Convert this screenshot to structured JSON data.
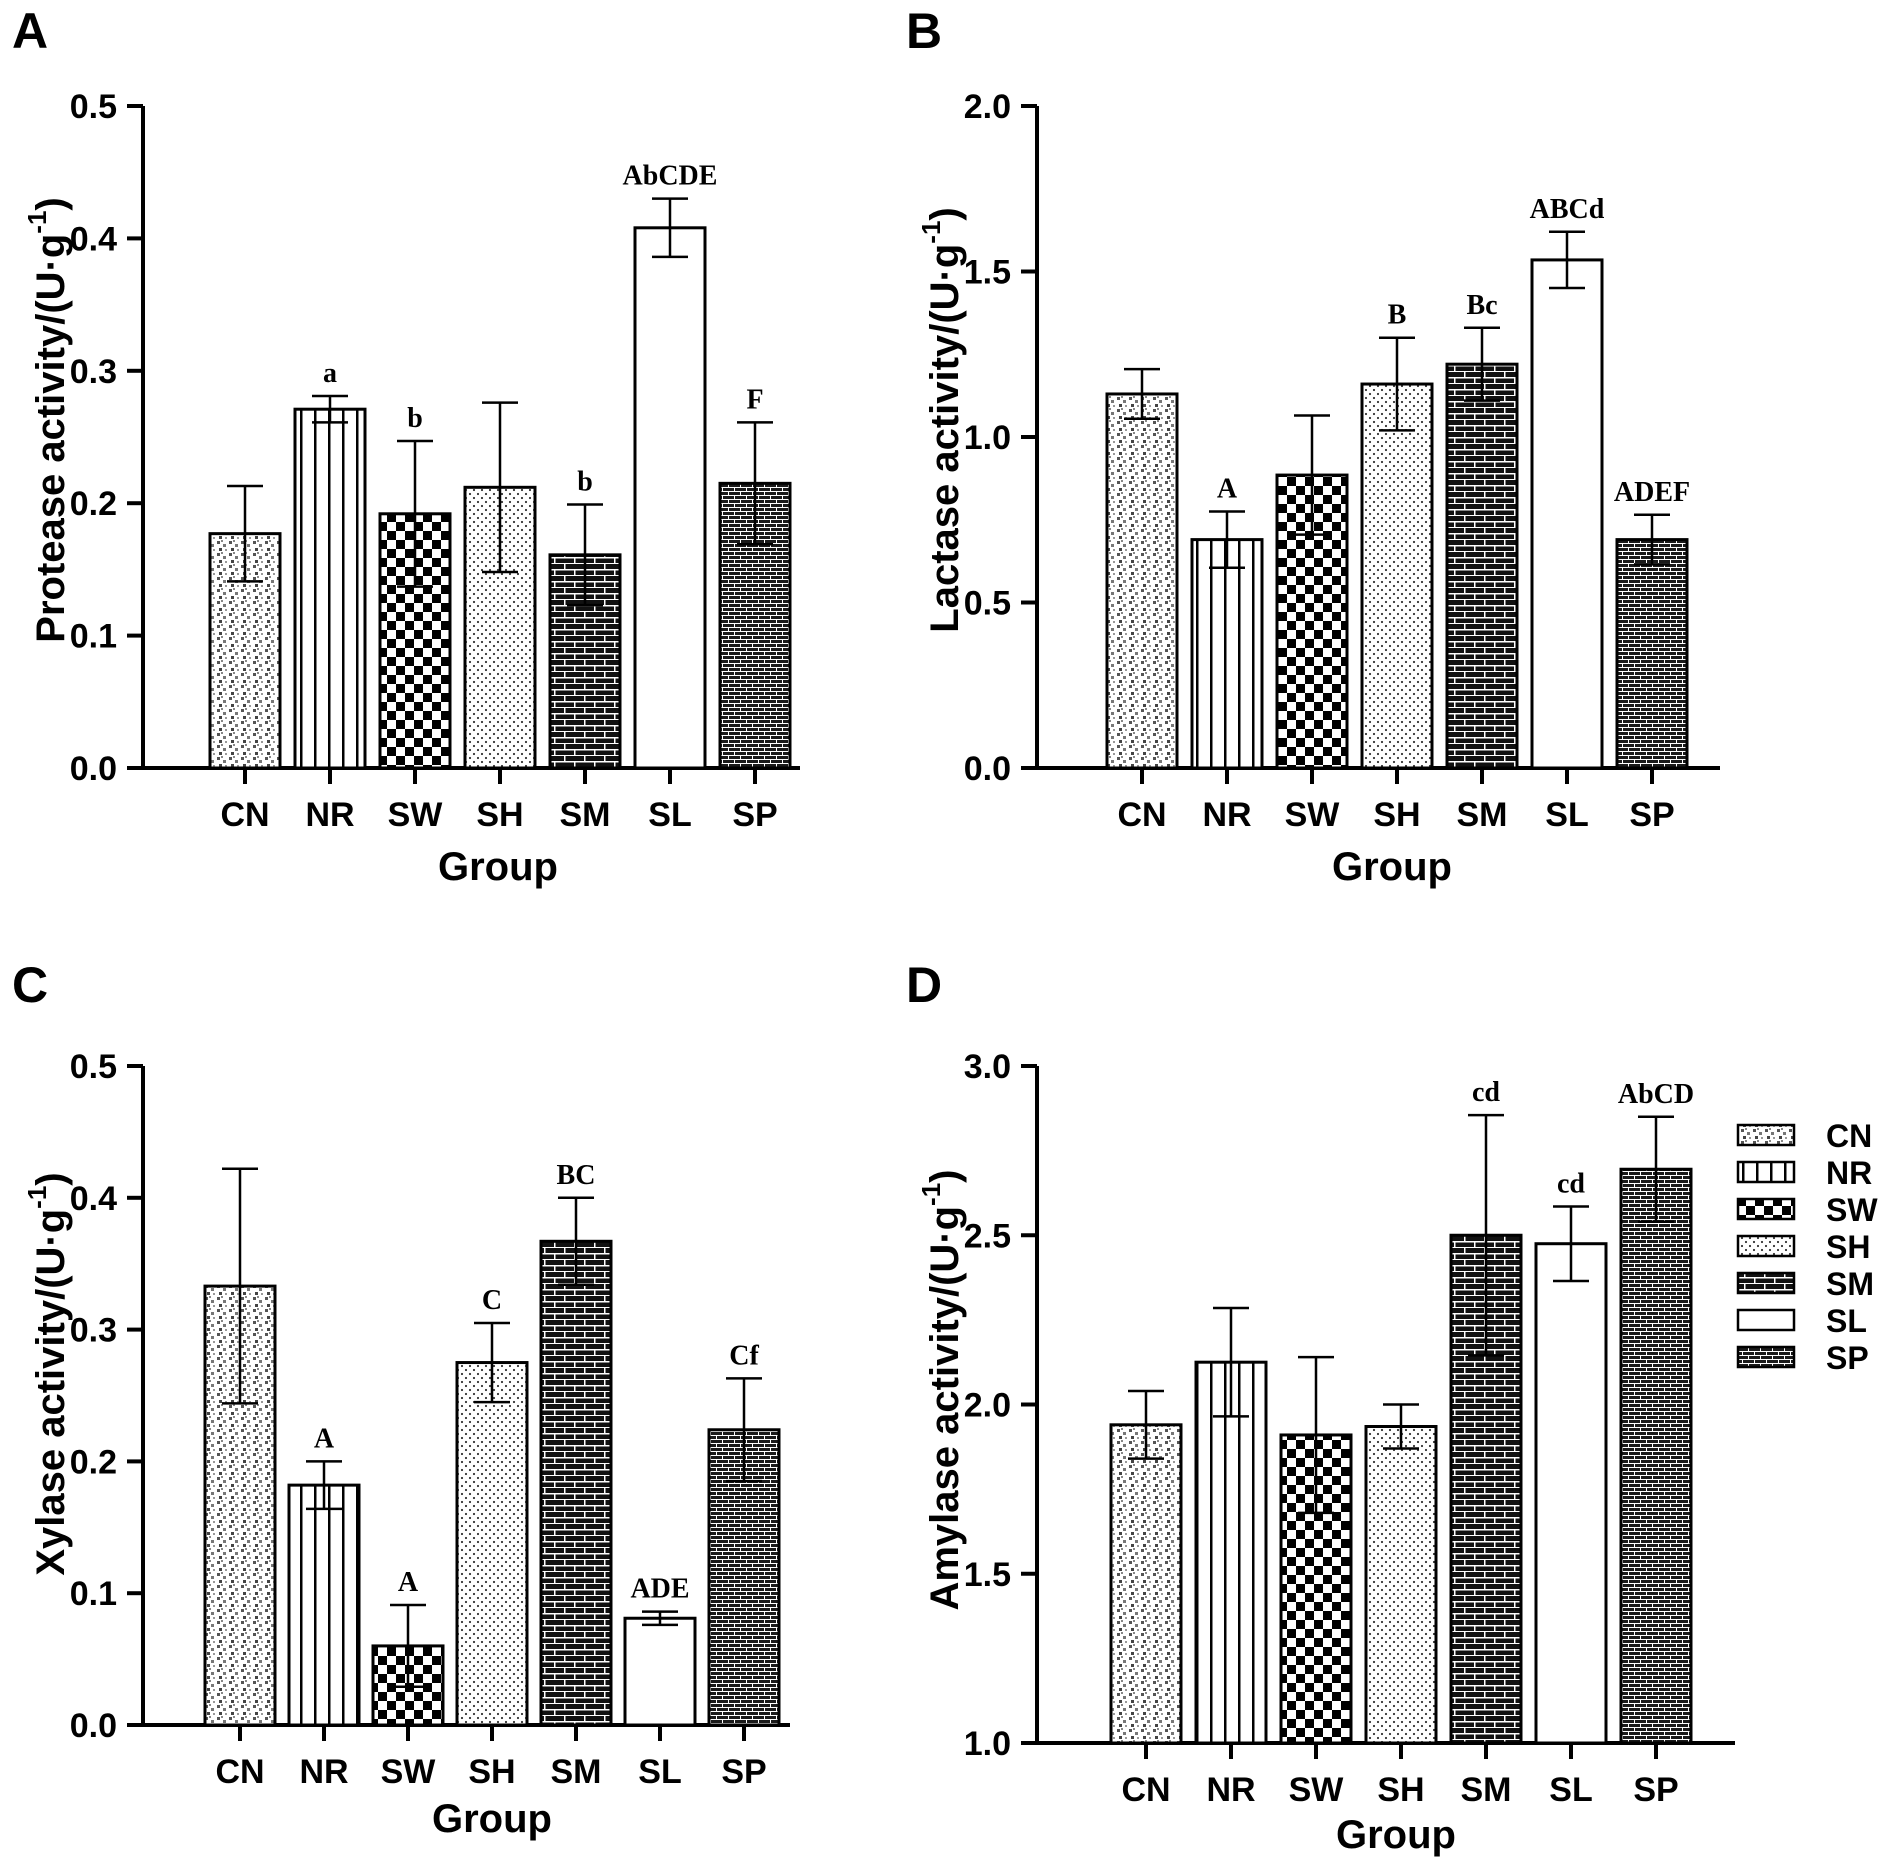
{
  "patterns": {
    "CN": "speckle",
    "NR": "vertical-stripes",
    "SW": "checker",
    "SH": "fine-dots",
    "SM": "dark-brick",
    "SL": "blank",
    "SP": "dense-brick"
  },
  "legend": {
    "entries": [
      "CN",
      "NR",
      "SW",
      "SH",
      "SM",
      "SL",
      "SP"
    ]
  },
  "chart_data": [
    {
      "panel": "A",
      "type": "bar",
      "categories": [
        "CN",
        "NR",
        "SW",
        "SH",
        "SM",
        "SL",
        "SP"
      ],
      "values": [
        0.177,
        0.271,
        0.192,
        0.212,
        0.161,
        0.408,
        0.215
      ],
      "errors": [
        0.036,
        0.01,
        0.055,
        0.064,
        0.038,
        0.022,
        0.046
      ],
      "significance": [
        "",
        "a",
        "b",
        "",
        "b",
        "AbCDE",
        "F"
      ],
      "ylabel": "Protease activity/(U·g",
      "ylabel_sup": "-1",
      "ylabel_close": ")",
      "xlabel": "Group",
      "ylim": [
        0,
        0.5
      ],
      "yticks": [
        0.0,
        0.1,
        0.2,
        0.3,
        0.4,
        0.5
      ],
      "ytick_labels": [
        "0.0",
        "0.1",
        "0.2",
        "0.3",
        "0.4",
        "0.5"
      ]
    },
    {
      "panel": "B",
      "type": "bar",
      "categories": [
        "CN",
        "NR",
        "SW",
        "SH",
        "SM",
        "SL",
        "SP"
      ],
      "values": [
        1.13,
        0.69,
        0.885,
        1.16,
        1.22,
        1.535,
        0.69
      ],
      "errors": [
        0.075,
        0.085,
        0.18,
        0.14,
        0.11,
        0.085,
        0.075
      ],
      "significance": [
        "",
        "A",
        "",
        "B",
        "Bc",
        "ABCd",
        "ADEF"
      ],
      "ylabel": "Lactase activity/(U·g",
      "ylabel_sup": "-1",
      "ylabel_close": ")",
      "xlabel": "Group",
      "ylim": [
        0,
        2.0
      ],
      "yticks": [
        0.0,
        0.5,
        1.0,
        1.5,
        2.0
      ],
      "ytick_labels": [
        "0.0",
        "0.5",
        "1.0",
        "1.5",
        "2.0"
      ]
    },
    {
      "panel": "C",
      "type": "bar",
      "categories": [
        "CN",
        "NR",
        "SW",
        "SH",
        "SM",
        "SL",
        "SP"
      ],
      "values": [
        0.333,
        0.182,
        0.06,
        0.275,
        0.367,
        0.081,
        0.224
      ],
      "errors": [
        0.089,
        0.018,
        0.031,
        0.03,
        0.033,
        0.005,
        0.039
      ],
      "significance": [
        "",
        "A",
        "A",
        "C",
        "BC",
        "ADE",
        "Cf"
      ],
      "ylabel": "Xylase activity/(U·g",
      "ylabel_sup": "-1",
      "ylabel_close": ")",
      "xlabel": "Group",
      "ylim": [
        0,
        0.5
      ],
      "yticks": [
        0.0,
        0.1,
        0.2,
        0.3,
        0.4,
        0.5
      ],
      "ytick_labels": [
        "0.0",
        "0.1",
        "0.2",
        "0.3",
        "0.4",
        "0.5"
      ]
    },
    {
      "panel": "D",
      "type": "bar",
      "categories": [
        "CN",
        "NR",
        "SW",
        "SH",
        "SM",
        "SL",
        "SP"
      ],
      "values": [
        1.94,
        2.125,
        1.91,
        1.935,
        2.5,
        2.475,
        2.695
      ],
      "errors": [
        0.1,
        0.16,
        0.23,
        0.065,
        0.355,
        0.11,
        0.155
      ],
      "significance": [
        "",
        "",
        "",
        "",
        "cd",
        "cd",
        "AbCD"
      ],
      "ylabel": "Amylase activity/(U·g",
      "ylabel_sup": "-1",
      "ylabel_close": ")",
      "xlabel": "Group",
      "ylim": [
        1.0,
        3.0
      ],
      "yticks": [
        1.0,
        1.5,
        2.0,
        2.5,
        3.0
      ],
      "ytick_labels": [
        "1.0",
        "1.5",
        "2.0",
        "2.5",
        "3.0"
      ]
    }
  ]
}
